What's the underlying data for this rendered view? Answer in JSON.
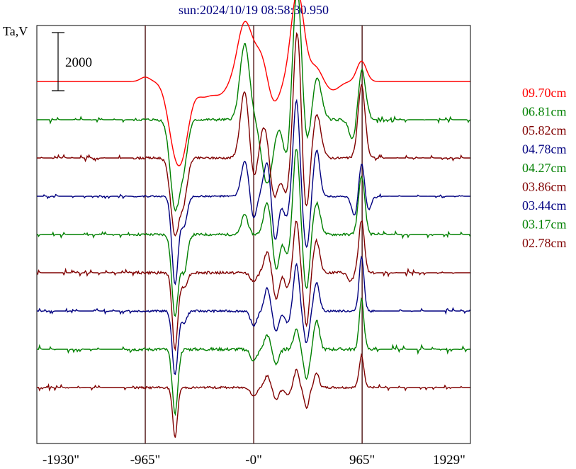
{
  "chart_data": {
    "type": "line",
    "title": "sun:2024/10/19 08:58:30.950",
    "ylabel": "Ta,V",
    "scale_bar_label": "2000",
    "xlim": [
      -1930,
      1929
    ],
    "x_ticks": [
      {
        "value": -1930,
        "label": "-1930\""
      },
      {
        "value": -965,
        "label": "-965\""
      },
      {
        "value": 0,
        "label": "-0\""
      },
      {
        "value": 965,
        "label": "965\""
      },
      {
        "value": 1929,
        "label": "1929\""
      }
    ],
    "vertical_markers": [
      -965,
      0,
      965
    ],
    "series": [
      {
        "name": "09.70cm",
        "color": "#ff0000",
        "baseline": 0,
        "noise": 0,
        "features": [
          [
            -965,
            150,
            60
          ],
          [
            -700,
            -2100,
            90
          ],
          [
            -620,
            -1500,
            80
          ],
          [
            -450,
            -500,
            100
          ],
          [
            -300,
            -400,
            90
          ],
          [
            -80,
            2000,
            90
          ],
          [
            70,
            1000,
            90
          ],
          [
            170,
            -900,
            80
          ],
          [
            390,
            3100,
            80
          ],
          [
            550,
            500,
            80
          ],
          [
            700,
            -300,
            90
          ],
          [
            960,
            700,
            60
          ]
        ]
      },
      {
        "name": "06.81cm",
        "color": "#008000",
        "baseline": 1,
        "noise": 140,
        "features": [
          [
            -700,
            -3000,
            60
          ],
          [
            -620,
            -1300,
            50
          ],
          [
            -80,
            2600,
            60
          ],
          [
            120,
            -2200,
            70
          ],
          [
            300,
            -1500,
            50
          ],
          [
            390,
            4900,
            60
          ],
          [
            460,
            -1500,
            60
          ],
          [
            560,
            1500,
            60
          ],
          [
            890,
            -800,
            50
          ],
          [
            960,
            1800,
            50
          ]
        ]
      },
      {
        "name": "05.82cm",
        "color": "#800000",
        "baseline": 2,
        "noise": 130,
        "features": [
          [
            -700,
            -2600,
            55
          ],
          [
            -620,
            -1300,
            45
          ],
          [
            -80,
            2300,
            55
          ],
          [
            0,
            -900,
            45
          ],
          [
            100,
            1200,
            60
          ],
          [
            180,
            -1500,
            55
          ],
          [
            290,
            -1200,
            50
          ],
          [
            390,
            4600,
            50
          ],
          [
            460,
            -2200,
            50
          ],
          [
            560,
            1500,
            55
          ],
          [
            960,
            2500,
            45
          ]
        ]
      },
      {
        "name": "04.78cm",
        "color": "#000080",
        "baseline": 3,
        "noise": 90,
        "features": [
          [
            -700,
            -3000,
            40
          ],
          [
            -620,
            -1000,
            40
          ],
          [
            -80,
            1200,
            45
          ],
          [
            0,
            -800,
            35
          ],
          [
            120,
            1200,
            45
          ],
          [
            190,
            -1600,
            40
          ],
          [
            290,
            -700,
            40
          ],
          [
            380,
            3300,
            40
          ],
          [
            470,
            -1800,
            40
          ],
          [
            560,
            1600,
            40
          ],
          [
            900,
            -700,
            40
          ],
          [
            960,
            1200,
            35
          ],
          [
            1020,
            -500,
            35
          ]
        ]
      },
      {
        "name": "04.27cm",
        "color": "#008000",
        "baseline": 4,
        "noise": 140,
        "features": [
          [
            -700,
            -2800,
            40
          ],
          [
            -620,
            -1300,
            40
          ],
          [
            -80,
            700,
            40
          ],
          [
            120,
            1100,
            45
          ],
          [
            200,
            -1200,
            40
          ],
          [
            300,
            -700,
            40
          ],
          [
            380,
            3000,
            40
          ],
          [
            470,
            -1900,
            40
          ],
          [
            560,
            1100,
            45
          ],
          [
            960,
            2000,
            40
          ]
        ]
      },
      {
        "name": "03.86cm",
        "color": "#800000",
        "baseline": 5,
        "noise": 150,
        "features": [
          [
            -700,
            -2600,
            35
          ],
          [
            -620,
            -500,
            40
          ],
          [
            0,
            -300,
            40
          ],
          [
            120,
            700,
            40
          ],
          [
            200,
            -900,
            35
          ],
          [
            300,
            -500,
            35
          ],
          [
            380,
            1800,
            35
          ],
          [
            470,
            -1800,
            35
          ],
          [
            560,
            1100,
            40
          ],
          [
            860,
            -300,
            35
          ],
          [
            960,
            1800,
            35
          ]
        ]
      },
      {
        "name": "03.44cm",
        "color": "#000080",
        "baseline": 6,
        "noise": 120,
        "features": [
          [
            -700,
            -2200,
            35
          ],
          [
            -620,
            -400,
            35
          ],
          [
            0,
            -500,
            40
          ],
          [
            120,
            800,
            35
          ],
          [
            200,
            -700,
            35
          ],
          [
            300,
            -400,
            35
          ],
          [
            380,
            1600,
            35
          ],
          [
            470,
            -1100,
            35
          ],
          [
            560,
            1000,
            35
          ],
          [
            960,
            1900,
            30
          ]
        ]
      },
      {
        "name": "03.17cm",
        "color": "#008000",
        "baseline": 7,
        "noise": 170,
        "features": [
          [
            -700,
            -2200,
            35
          ],
          [
            0,
            -400,
            40
          ],
          [
            120,
            500,
            35
          ],
          [
            200,
            -500,
            35
          ],
          [
            380,
            700,
            35
          ],
          [
            470,
            -1000,
            35
          ],
          [
            560,
            1000,
            35
          ],
          [
            960,
            1700,
            30
          ]
        ]
      },
      {
        "name": "02.78cm",
        "color": "#800000",
        "baseline": 8,
        "noise": 120,
        "features": [
          [
            -700,
            -1700,
            30
          ],
          [
            0,
            -300,
            35
          ],
          [
            120,
            400,
            35
          ],
          [
            200,
            -400,
            35
          ],
          [
            300,
            -250,
            35
          ],
          [
            380,
            600,
            30
          ],
          [
            470,
            -700,
            30
          ],
          [
            560,
            500,
            30
          ],
          [
            960,
            1100,
            30
          ]
        ]
      }
    ]
  }
}
